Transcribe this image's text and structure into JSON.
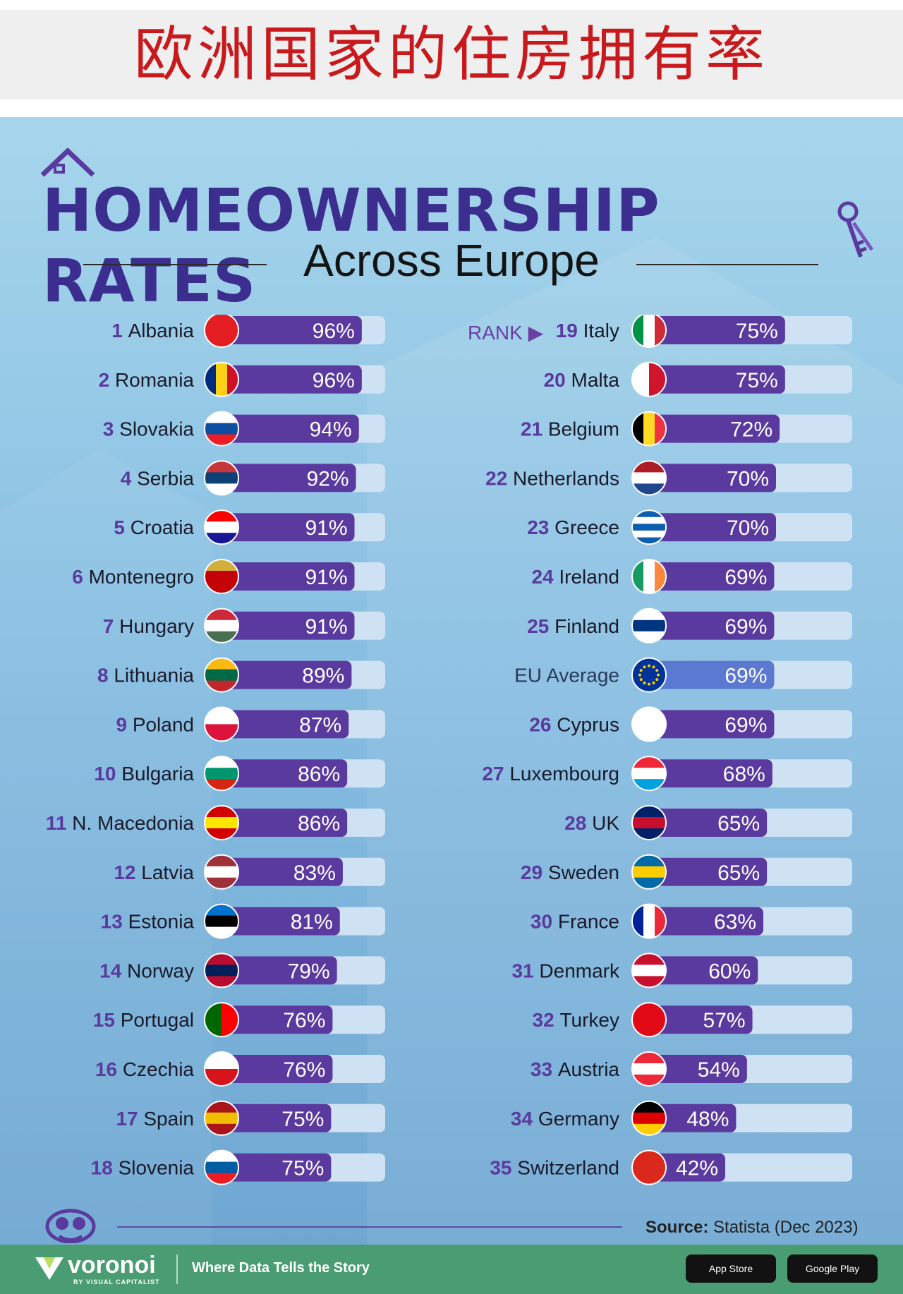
{
  "header": {
    "title": "欧洲国家的住房拥有率"
  },
  "infographic": {
    "title": "HOMEOWNERSHIP RATES",
    "subtitle": "Across Europe",
    "rank_hint": "RANK",
    "source_label": "Source:",
    "source_text": "Statista (Dec 2023)"
  },
  "footer": {
    "brand": "voronoi",
    "brand_sub": "BY VISUAL CAPITALIST",
    "tagline": "Where Data Tells the Story",
    "app_store": "App Store",
    "google_play": "Google Play"
  },
  "colors": {
    "bar": "#5a3a9e",
    "bar_eu": "#5b79d1",
    "track": "#cfe2f3",
    "rank": "#5a3a9e",
    "title": "#3b2e8f"
  },
  "chart_data": {
    "type": "bar",
    "orientation": "horizontal",
    "title": "HOMEOWNERSHIP RATES Across Europe",
    "unit": "%",
    "xlim": [
      0,
      100
    ],
    "source": "Statista (Dec 2023)",
    "items": [
      {
        "rank": "1",
        "country": "Albania",
        "value": 96,
        "flag": [
          "#e41e20"
        ]
      },
      {
        "rank": "2",
        "country": "Romania",
        "value": 96,
        "flag": [
          "#002b7f",
          "#fcd116",
          "#ce1126"
        ],
        "dir": "v"
      },
      {
        "rank": "3",
        "country": "Slovakia",
        "value": 94,
        "flag": [
          "#ffffff",
          "#0b4ea2",
          "#ee1c25"
        ]
      },
      {
        "rank": "4",
        "country": "Serbia",
        "value": 92,
        "flag": [
          "#c6363c",
          "#0c4076",
          "#ffffff"
        ]
      },
      {
        "rank": "5",
        "country": "Croatia",
        "value": 91,
        "flag": [
          "#ff0000",
          "#ffffff",
          "#171796"
        ]
      },
      {
        "rank": "6",
        "country": "Montenegro",
        "value": 91,
        "flag": [
          "#d3ae3b",
          "#c40308",
          "#c40308"
        ]
      },
      {
        "rank": "7",
        "country": "Hungary",
        "value": 91,
        "flag": [
          "#ce2939",
          "#ffffff",
          "#477050"
        ]
      },
      {
        "rank": "8",
        "country": "Lithuania",
        "value": 89,
        "flag": [
          "#fdb913",
          "#006a44",
          "#c1272d"
        ]
      },
      {
        "rank": "9",
        "country": "Poland",
        "value": 87,
        "flag": [
          "#ffffff",
          "#dc143c"
        ]
      },
      {
        "rank": "10",
        "country": "Bulgaria",
        "value": 86,
        "flag": [
          "#ffffff",
          "#00966e",
          "#d62612"
        ]
      },
      {
        "rank": "11",
        "country": "N. Macedonia",
        "value": 86,
        "flag": [
          "#d20000",
          "#ffe600",
          "#d20000"
        ]
      },
      {
        "rank": "12",
        "country": "Latvia",
        "value": 83,
        "flag": [
          "#9e3039",
          "#ffffff",
          "#9e3039"
        ]
      },
      {
        "rank": "13",
        "country": "Estonia",
        "value": 81,
        "flag": [
          "#0072ce",
          "#000000",
          "#ffffff"
        ]
      },
      {
        "rank": "14",
        "country": "Norway",
        "value": 79,
        "flag": [
          "#ba0c2f",
          "#00205b",
          "#ba0c2f"
        ]
      },
      {
        "rank": "15",
        "country": "Portugal",
        "value": 76,
        "flag": [
          "#006600",
          "#ff0000"
        ],
        "dir": "v"
      },
      {
        "rank": "16",
        "country": "Czechia",
        "value": 76,
        "flag": [
          "#ffffff",
          "#d7141a"
        ]
      },
      {
        "rank": "17",
        "country": "Spain",
        "value": 75,
        "flag": [
          "#aa151b",
          "#f1bf00",
          "#aa151b"
        ]
      },
      {
        "rank": "18",
        "country": "Slovenia",
        "value": 75,
        "flag": [
          "#ffffff",
          "#005da4",
          "#ed1c24"
        ]
      },
      {
        "rank": "19",
        "country": "Italy",
        "value": 75,
        "flag": [
          "#009246",
          "#ffffff",
          "#ce2b37"
        ],
        "dir": "v"
      },
      {
        "rank": "20",
        "country": "Malta",
        "value": 75,
        "flag": [
          "#ffffff",
          "#cf142b"
        ],
        "dir": "v"
      },
      {
        "rank": "21",
        "country": "Belgium",
        "value": 72,
        "flag": [
          "#000000",
          "#fdda24",
          "#ef3340"
        ],
        "dir": "v"
      },
      {
        "rank": "22",
        "country": "Netherlands",
        "value": 70,
        "flag": [
          "#ae1c28",
          "#ffffff",
          "#21468b"
        ]
      },
      {
        "rank": "23",
        "country": "Greece",
        "value": 70,
        "flag": [
          "#0d5eaf",
          "#ffffff",
          "#0d5eaf",
          "#ffffff",
          "#0d5eaf"
        ]
      },
      {
        "rank": "24",
        "country": "Ireland",
        "value": 69,
        "flag": [
          "#169b62",
          "#ffffff",
          "#ff883e"
        ],
        "dir": "v"
      },
      {
        "rank": "25",
        "country": "Finland",
        "value": 69,
        "flag": [
          "#ffffff",
          "#003580",
          "#ffffff"
        ]
      },
      {
        "rank": "",
        "country": "EU Average",
        "value": 69,
        "flag": [
          "#003399"
        ],
        "eu": true
      },
      {
        "rank": "26",
        "country": "Cyprus",
        "value": 69,
        "flag": [
          "#ffffff"
        ]
      },
      {
        "rank": "27",
        "country": "Luxembourg",
        "value": 68,
        "flag": [
          "#ed2939",
          "#ffffff",
          "#00a1de"
        ]
      },
      {
        "rank": "28",
        "country": "UK",
        "value": 65,
        "flag": [
          "#012169",
          "#c8102e",
          "#012169"
        ]
      },
      {
        "rank": "29",
        "country": "Sweden",
        "value": 65,
        "flag": [
          "#006aa7",
          "#fecc00",
          "#006aa7"
        ]
      },
      {
        "rank": "30",
        "country": "France",
        "value": 63,
        "flag": [
          "#002395",
          "#ffffff",
          "#ed2939"
        ],
        "dir": "v"
      },
      {
        "rank": "31",
        "country": "Denmark",
        "value": 60,
        "flag": [
          "#c8102e",
          "#ffffff",
          "#c8102e"
        ]
      },
      {
        "rank": "32",
        "country": "Turkey",
        "value": 57,
        "flag": [
          "#e30a17"
        ]
      },
      {
        "rank": "33",
        "country": "Austria",
        "value": 54,
        "flag": [
          "#ed2939",
          "#ffffff",
          "#ed2939"
        ]
      },
      {
        "rank": "34",
        "country": "Germany",
        "value": 48,
        "flag": [
          "#000000",
          "#dd0000",
          "#ffce00"
        ]
      },
      {
        "rank": "35",
        "country": "Switzerland",
        "value": 42,
        "flag": [
          "#da291c"
        ]
      }
    ]
  }
}
